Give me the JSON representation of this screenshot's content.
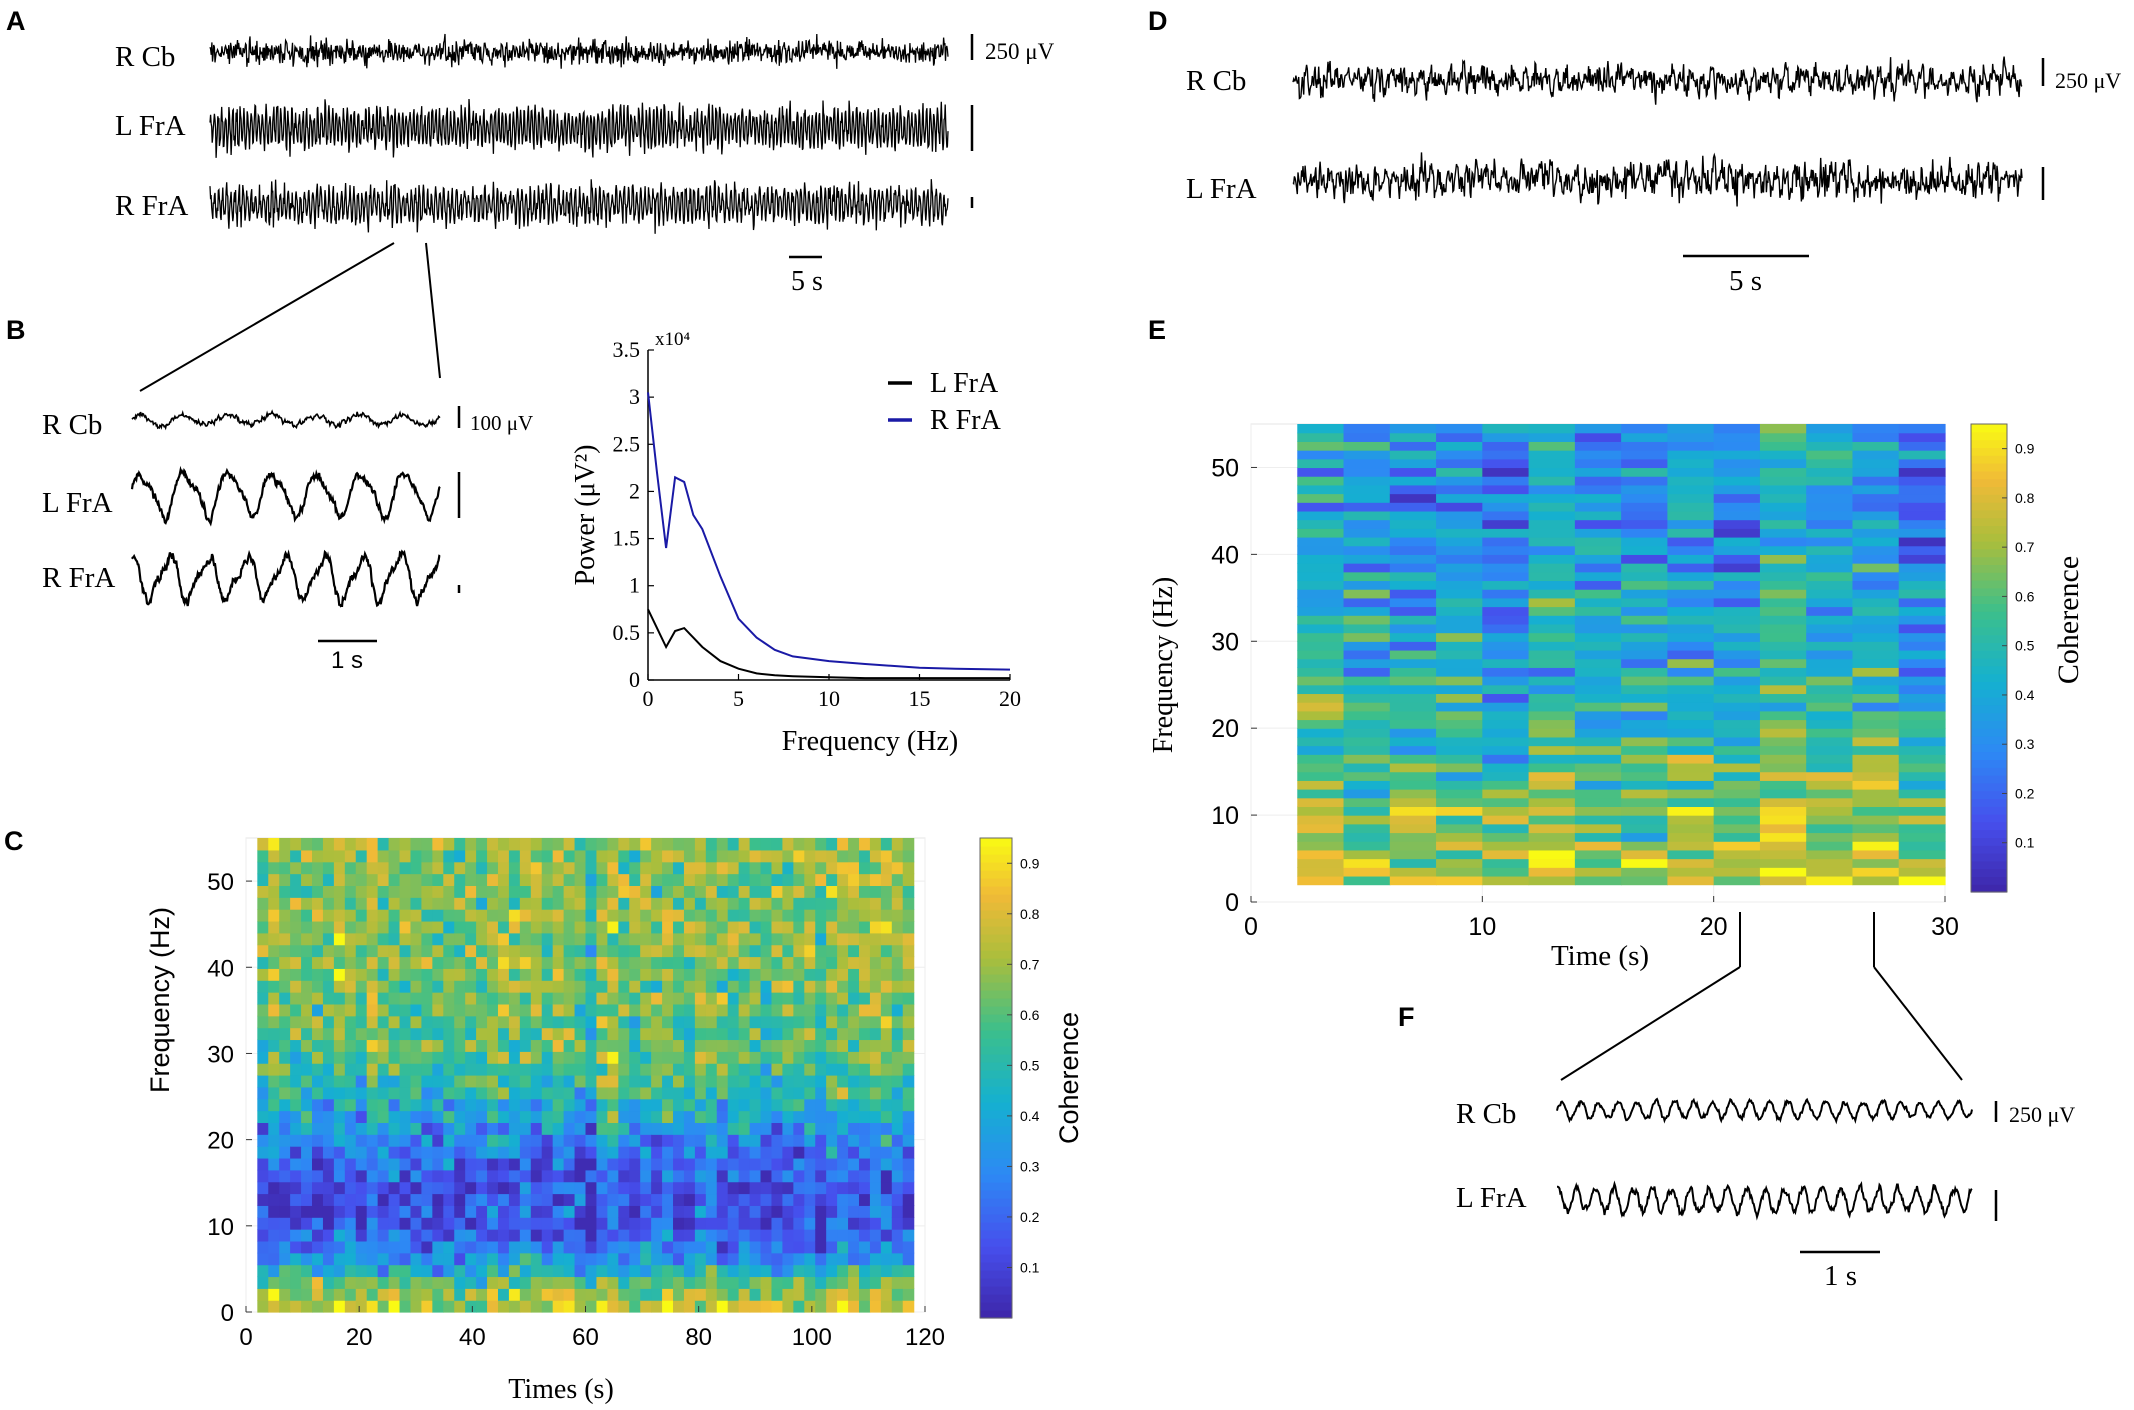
{
  "panel_labels": {
    "a": "A",
    "b": "B",
    "c": "C",
    "d": "D",
    "e": "E",
    "f": "F"
  },
  "traces": {
    "a": {
      "labels": [
        "R Cb",
        "L FrA",
        "R FrA"
      ],
      "scale": "250 μV",
      "time_scale": "5 s"
    },
    "b": {
      "labels": [
        "R Cb",
        "L FrA",
        "R FrA"
      ],
      "scale": "100 μV",
      "time_scale": "1 s"
    },
    "d": {
      "labels": [
        "R Cb",
        "L FrA"
      ],
      "scale": "250 μV",
      "time_scale": "5 s"
    },
    "f": {
      "labels": [
        "R Cb",
        "L FrA"
      ],
      "scale": "250 μV",
      "time_scale": "1 s"
    }
  },
  "chart_data": [
    {
      "id": "psd",
      "type": "line",
      "title": "",
      "xlabel": "Frequency (Hz)",
      "ylabel": "Power (μV²)",
      "y_multiplier_label": "x10⁴",
      "xlim": [
        0,
        20
      ],
      "ylim": [
        0,
        3.5
      ],
      "xticks": [
        0,
        5,
        10,
        15,
        20
      ],
      "yticks": [
        0,
        0.5,
        1,
        1.5,
        2,
        2.5,
        3,
        3.5
      ],
      "legend": "top-right",
      "series": [
        {
          "name": "L FrA",
          "color": "#000000",
          "x": [
            0,
            0.5,
            1,
            1.5,
            2,
            2.5,
            3,
            4,
            5,
            6,
            7,
            8,
            10,
            12,
            15,
            20
          ],
          "y": [
            0.75,
            0.55,
            0.35,
            0.52,
            0.55,
            0.45,
            0.35,
            0.2,
            0.12,
            0.07,
            0.05,
            0.04,
            0.03,
            0.02,
            0.02,
            0.02
          ]
        },
        {
          "name": "R FrA",
          "color": "#1a1aa6",
          "x": [
            0,
            0.5,
            1,
            1.5,
            2,
            2.5,
            3,
            4,
            5,
            6,
            7,
            8,
            10,
            12,
            15,
            17,
            20
          ],
          "y": [
            3.05,
            2.2,
            1.4,
            2.15,
            2.1,
            1.75,
            1.6,
            1.1,
            0.65,
            0.45,
            0.32,
            0.25,
            0.2,
            0.17,
            0.13,
            0.12,
            0.11
          ]
        }
      ]
    },
    {
      "id": "coh_c",
      "type": "heatmap",
      "xlabel": "Times (s)",
      "ylabel": "Frequency (Hz)",
      "colorbar_label": "Coherence",
      "xlim": [
        0,
        120
      ],
      "ylim": [
        0,
        55
      ],
      "xticks": [
        0,
        20,
        40,
        60,
        80,
        100,
        120
      ],
      "yticks": [
        0,
        10,
        20,
        30,
        40,
        50
      ],
      "data_x_range": [
        2,
        118
      ],
      "data_y_range": [
        0,
        55
      ],
      "n_cols": 60,
      "n_rows": 40,
      "seed": 11,
      "band_profile": {
        "freq": [
          0,
          3,
          6,
          9,
          12,
          15,
          18,
          21,
          25,
          30,
          40,
          55
        ],
        "mean": [
          0.8,
          0.65,
          0.35,
          0.17,
          0.13,
          0.16,
          0.22,
          0.33,
          0.5,
          0.6,
          0.67,
          0.67
        ]
      },
      "noise": 0.2,
      "colorbar_ticks": [
        0.1,
        0.2,
        0.3,
        0.4,
        0.5,
        0.6,
        0.7,
        0.8,
        0.9
      ],
      "clim": [
        0,
        0.95
      ]
    },
    {
      "id": "coh_e",
      "type": "heatmap",
      "xlabel": "Time (s)",
      "ylabel": "Frequency (Hz)",
      "colorbar_label": "Coherence",
      "xlim": [
        0,
        30
      ],
      "ylim": [
        0,
        55
      ],
      "xticks": [
        0,
        10,
        20,
        30
      ],
      "yticks": [
        0,
        10,
        20,
        30,
        40,
        50
      ],
      "data_x_range": [
        2,
        30
      ],
      "data_y_range": [
        2,
        55
      ],
      "n_cols": 14,
      "n_rows": 53,
      "seed": 29,
      "band_profile": {
        "freq": [
          0,
          5,
          10,
          15,
          20,
          25,
          30,
          35,
          40,
          45,
          55
        ],
        "mean": [
          0.72,
          0.72,
          0.65,
          0.58,
          0.52,
          0.45,
          0.42,
          0.4,
          0.36,
          0.34,
          0.34
        ]
      },
      "noise": 0.24,
      "colorbar_ticks": [
        0.1,
        0.2,
        0.3,
        0.4,
        0.5,
        0.6,
        0.7,
        0.8,
        0.9
      ],
      "clim": [
        0,
        0.95
      ]
    }
  ]
}
